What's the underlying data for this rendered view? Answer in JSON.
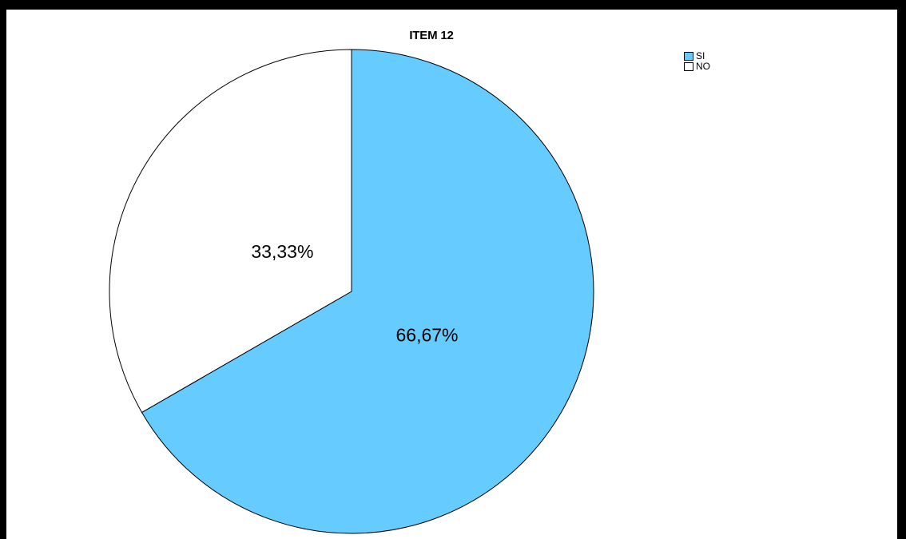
{
  "chart_data": {
    "type": "pie",
    "title": "ITEM 12",
    "slices": [
      {
        "label": "SI",
        "value": 66.67,
        "value_label": "66,67%",
        "color": "#66CCFF"
      },
      {
        "label": "NO",
        "value": 33.33,
        "value_label": "33,33%",
        "color": "#FFFFFF"
      }
    ],
    "start_angle_deg": 0,
    "direction": "clockwise",
    "legend_position": "top-right"
  }
}
